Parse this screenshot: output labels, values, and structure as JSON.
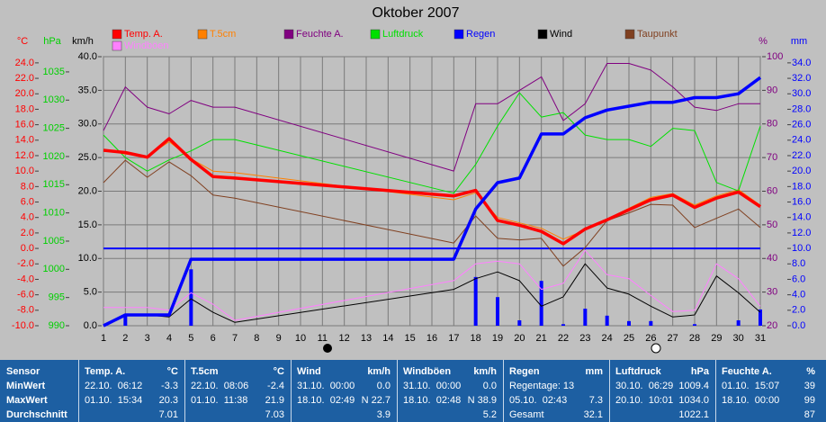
{
  "chart_data": {
    "type": "line",
    "title": "Oktober 2007",
    "x": [
      1,
      2,
      3,
      4,
      5,
      6,
      7,
      17,
      18,
      19,
      20,
      21,
      22,
      23,
      24,
      25,
      26,
      27,
      28,
      29,
      30,
      31
    ],
    "xlim": [
      1,
      31
    ],
    "xticks": [
      1,
      2,
      3,
      4,
      5,
      6,
      7,
      8,
      9,
      10,
      11,
      12,
      13,
      14,
      15,
      16,
      17,
      18,
      19,
      20,
      21,
      22,
      23,
      24,
      25,
      26,
      27,
      28,
      29,
      30,
      31
    ],
    "axes": [
      {
        "label": "°C",
        "color": "#ff0000",
        "side": "left",
        "lim": [
          -10,
          24.8
        ],
        "ticks": [
          {
            "value": -10,
            "label": "-10.0"
          },
          {
            "value": -8,
            "label": "-8.0"
          },
          {
            "value": -6,
            "label": "-6.0"
          },
          {
            "value": -4,
            "label": "-4.0"
          },
          {
            "value": -2,
            "label": "-2.0"
          },
          {
            "value": 0,
            "label": "0.0"
          },
          {
            "value": 2,
            "label": "2.0"
          },
          {
            "value": 4,
            "label": "4.0"
          },
          {
            "value": 6,
            "label": "6.0"
          },
          {
            "value": 8,
            "label": "8.0"
          },
          {
            "value": 10,
            "label": "10.0"
          },
          {
            "value": 12,
            "label": "12.0"
          },
          {
            "value": 14,
            "label": "14.0"
          },
          {
            "value": 16,
            "label": "16.0"
          },
          {
            "value": 18,
            "label": "18.0"
          },
          {
            "value": 20,
            "label": "20.0"
          },
          {
            "value": 22,
            "label": "22.0"
          },
          {
            "value": 24,
            "label": "24.0"
          }
        ]
      },
      {
        "label": "hPa",
        "color": "#00d000",
        "side": "left",
        "lim": [
          990,
          1037.7
        ],
        "ticks": [
          990,
          995,
          1000,
          1005,
          1010,
          1015,
          1020,
          1025,
          1030,
          1035
        ]
      },
      {
        "label": "km/h",
        "color": "#000000",
        "side": "left",
        "lim": [
          0,
          40
        ],
        "grid": true,
        "ticks": [
          {
            "value": 0,
            "label": "0.0"
          },
          {
            "value": 5,
            "label": "5.0"
          },
          {
            "value": 10,
            "label": "10.0"
          },
          {
            "value": 15,
            "label": "15.0"
          },
          {
            "value": 20,
            "label": "20.0"
          },
          {
            "value": 25,
            "label": "25.0"
          },
          {
            "value": 30,
            "label": "30.0"
          },
          {
            "value": 35,
            "label": "35.0"
          },
          {
            "value": 40,
            "label": "40.0"
          }
        ]
      },
      {
        "label": "%",
        "color": "#800080",
        "side": "right",
        "lim": [
          20,
          100
        ],
        "ticks": [
          20,
          30,
          40,
          50,
          60,
          70,
          80,
          90,
          100
        ]
      },
      {
        "label": "mm",
        "color": "#0000ff",
        "side": "right",
        "lim": [
          0,
          34.8
        ],
        "ticks": [
          {
            "value": 0,
            "label": "0.0"
          },
          {
            "value": 2,
            "label": "2.0"
          },
          {
            "value": 4,
            "label": "4.0"
          },
          {
            "value": 6,
            "label": "6.0"
          },
          {
            "value": 8,
            "label": "8.0"
          },
          {
            "value": 10,
            "label": "10.0"
          },
          {
            "value": 12,
            "label": "12.0"
          },
          {
            "value": 14,
            "label": "14.0"
          },
          {
            "value": 16,
            "label": "16.0"
          },
          {
            "value": 18,
            "label": "18.0"
          },
          {
            "value": 20,
            "label": "20.0"
          },
          {
            "value": 22,
            "label": "22.0"
          },
          {
            "value": 24,
            "label": "24.0"
          },
          {
            "value": 26,
            "label": "26.0"
          },
          {
            "value": 28,
            "label": "28.0"
          },
          {
            "value": 30,
            "label": "30.0"
          },
          {
            "value": 32,
            "label": "32.0"
          },
          {
            "value": 34,
            "label": "34.0"
          }
        ]
      }
    ],
    "series": [
      {
        "name": "Temp. A.",
        "color": "#ff0000",
        "axis": 0,
        "line_width": 3.5,
        "values": [
          12.7,
          12.4,
          11.8,
          14.2,
          11.5,
          9.3,
          9.1,
          6.8,
          7.5,
          3.6,
          3.0,
          2.2,
          0.6,
          2.5,
          3.7,
          5.0,
          6.3,
          6.9,
          5.3,
          6.5,
          7.3,
          5.4
        ]
      },
      {
        "name": "T.5cm",
        "color": "#ff8000",
        "axis": 0,
        "line_width": 1,
        "values": [
          12.8,
          12.2,
          11.9,
          13.8,
          11.6,
          10.0,
          9.8,
          6.3,
          7.2,
          4.0,
          3.3,
          2.6,
          1.2,
          2.4,
          3.8,
          5.2,
          6.6,
          7.1,
          5.6,
          6.8,
          7.6,
          5.6
        ]
      },
      {
        "name": "Feuchte A.",
        "color": "#800080",
        "axis": 3,
        "line_width": 1,
        "values": [
          78,
          91,
          85,
          83,
          87,
          85,
          85,
          66,
          86,
          86,
          90,
          94,
          81,
          86,
          98,
          98,
          96,
          91,
          85,
          84,
          86,
          86
        ]
      },
      {
        "name": "Luftdruck",
        "color": "#00e000",
        "axis": 1,
        "line_width": 1,
        "values": [
          1023.8,
          1019.8,
          1017.4,
          1019.4,
          1021,
          1023,
          1023,
          1013.5,
          1018.6,
          1025.4,
          1031.3,
          1027,
          1027.8,
          1023.8,
          1023,
          1023,
          1021.8,
          1025,
          1024.6,
          1015.4,
          1013.9,
          1025.4
        ]
      },
      {
        "name": "Regen",
        "color": "#0000ff",
        "axis": 4,
        "line_width": 3.5,
        "values": [
          0,
          1.4,
          1.4,
          1.4,
          8.6,
          8.6,
          8.6,
          8.6,
          15.1,
          18.5,
          19.1,
          24.8,
          24.8,
          26.9,
          27.9,
          28.4,
          28.9,
          28.9,
          29.5,
          29.5,
          30.0,
          32.1
        ]
      },
      {
        "name": "Wind",
        "color": "#000000",
        "axis": 2,
        "line_width": 1,
        "values": [
          0,
          1.6,
          1.6,
          1.3,
          4.0,
          2.0,
          0.5,
          5.4,
          7.0,
          8.0,
          6.7,
          2.9,
          4.3,
          9.2,
          5.6,
          4.7,
          2.9,
          1.3,
          1.6,
          7.4,
          4.9,
          2.0
        ]
      },
      {
        "name": "Taupunkt",
        "color": "#804020",
        "axis": 0,
        "line_width": 1,
        "values": [
          8.5,
          11.4,
          9.2,
          11.2,
          9.4,
          6.9,
          6.5,
          0.7,
          4.2,
          1.3,
          1.1,
          1.3,
          -2.3,
          0.1,
          3.6,
          4.6,
          5.7,
          5.6,
          2.7,
          3.9,
          5.1,
          2.7
        ]
      },
      {
        "name": "Windböen",
        "color": "#ff80ff",
        "axis": 2,
        "line_width": 1,
        "values": [
          2.7,
          2.7,
          2.7,
          2.3,
          4.9,
          3.2,
          0.8,
          6.7,
          9.2,
          9.6,
          9.2,
          5.4,
          6.3,
          11.2,
          7.6,
          7.0,
          4.5,
          2.1,
          2.3,
          9.2,
          7.0,
          2.9
        ]
      }
    ],
    "daily_rain": {
      "color": "#0000ff",
      "axis": 4,
      "x": [
        2,
        5,
        18,
        19,
        20,
        21,
        22,
        23,
        24,
        25,
        26,
        28,
        30,
        31
      ],
      "values": [
        1.4,
        7.3,
        6.3,
        3.7,
        0.7,
        5.8,
        0.2,
        2.2,
        1.3,
        0.6,
        0.6,
        0.2,
        0.7,
        2.1
      ]
    },
    "zero_line": {
      "axis": 0,
      "value": 0,
      "color": "#0000ff"
    }
  },
  "table": {
    "row_labels": [
      "Sensor",
      "MinWert",
      "MaxWert",
      "Durchschnitt"
    ],
    "columns": [
      {
        "name": "Temp. A.",
        "unit": "°C",
        "rows": [
          {
            "when": "22.10.  06:12",
            "value": "-3.3"
          },
          {
            "when": "01.10.  15:34",
            "value": "20.3"
          },
          {
            "value": "7.01"
          }
        ]
      },
      {
        "name": "T.5cm",
        "unit": "°C",
        "rows": [
          {
            "when": "22.10.  08:06",
            "value": "-2.4"
          },
          {
            "when": "01.10.  11:38",
            "value": "21.9"
          },
          {
            "value": "7.03"
          }
        ]
      },
      {
        "name": "Wind",
        "unit": "km/h",
        "rows": [
          {
            "when": "31.10.  00:00",
            "value": "0.0"
          },
          {
            "when": "18.10.  02:49",
            "value": "N 22.7"
          },
          {
            "value": "3.9"
          }
        ]
      },
      {
        "name": "Windböen",
        "unit": "km/h",
        "rows": [
          {
            "when": "31.10.  00:00",
            "value": "0.0"
          },
          {
            "when": "18.10.  02:48",
            "value": "N 38.9"
          },
          {
            "value": "5.2"
          }
        ]
      },
      {
        "name": "Regen",
        "unit": "mm",
        "rows": [
          {
            "when": "Regentage: 13"
          },
          {
            "when": "05.10.  02:43",
            "value": "7.3"
          },
          {
            "when": "Gesamt",
            "value": "32.1"
          }
        ]
      },
      {
        "name": "Luftdruck",
        "unit": "hPa",
        "rows": [
          {
            "when": "30.10.  06:29",
            "value": "1009.4"
          },
          {
            "when": "20.10.  10:01",
            "value": "1034.0"
          },
          {
            "value": "1022.1"
          }
        ]
      },
      {
        "name": "Feuchte A.",
        "unit": "%",
        "rows": [
          {
            "when": "01.10.  15:07",
            "value": "39"
          },
          {
            "when": "18.10.  00:00",
            "value": "99"
          },
          {
            "value": "87"
          }
        ]
      }
    ]
  }
}
